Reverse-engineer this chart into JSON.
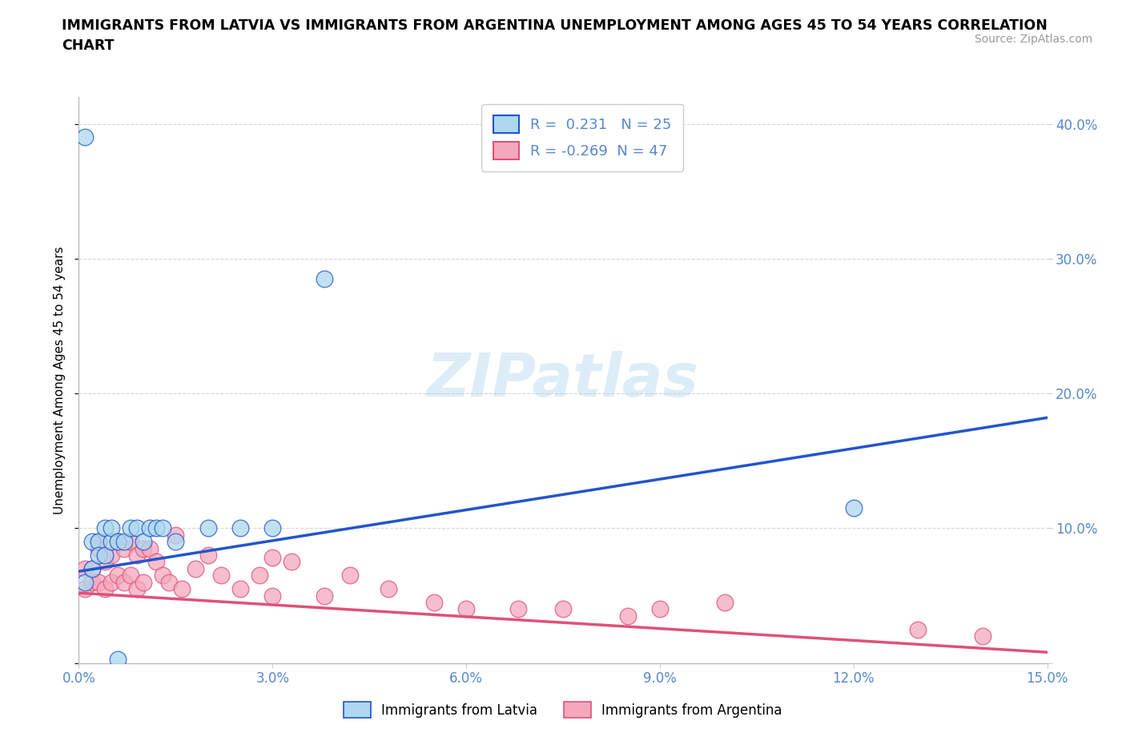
{
  "title_line1": "IMMIGRANTS FROM LATVIA VS IMMIGRANTS FROM ARGENTINA UNEMPLOYMENT AMONG AGES 45 TO 54 YEARS CORRELATION",
  "title_line2": "CHART",
  "source": "Source: ZipAtlas.com",
  "ylabel": "Unemployment Among Ages 45 to 54 years",
  "xlim": [
    0.0,
    0.15
  ],
  "ylim": [
    0.0,
    0.42
  ],
  "xticks": [
    0.0,
    0.03,
    0.06,
    0.09,
    0.12,
    0.15
  ],
  "xticklabels": [
    "0.0%",
    "3.0%",
    "6.0%",
    "9.0%",
    "12.0%",
    "15.0%"
  ],
  "yticks": [
    0.0,
    0.1,
    0.2,
    0.3,
    0.4
  ],
  "yticklabels": [
    "",
    "10.0%",
    "20.0%",
    "30.0%",
    "40.0%"
  ],
  "latvia_R": 0.231,
  "latvia_N": 25,
  "argentina_R": -0.269,
  "argentina_N": 47,
  "latvia_color": "#add8f0",
  "argentina_color": "#f4a8bc",
  "latvia_line_color": "#2255cc",
  "argentina_line_color": "#e0507a",
  "tick_color": "#5588cc",
  "watermark": "ZIPatlas",
  "latvia_line_x0": 0.0,
  "latvia_line_y0": 0.068,
  "latvia_line_x1": 0.15,
  "latvia_line_y1": 0.182,
  "argentina_line_x0": 0.0,
  "argentina_line_y0": 0.052,
  "argentina_line_x1": 0.15,
  "argentina_line_y1": 0.008,
  "latvia_x": [
    0.001,
    0.001,
    0.002,
    0.002,
    0.003,
    0.003,
    0.004,
    0.004,
    0.005,
    0.005,
    0.006,
    0.007,
    0.008,
    0.009,
    0.01,
    0.011,
    0.012,
    0.013,
    0.015,
    0.02,
    0.025,
    0.03,
    0.038,
    0.12,
    0.006
  ],
  "latvia_y": [
    0.39,
    0.06,
    0.07,
    0.09,
    0.09,
    0.08,
    0.1,
    0.08,
    0.09,
    0.1,
    0.09,
    0.09,
    0.1,
    0.1,
    0.09,
    0.1,
    0.1,
    0.1,
    0.09,
    0.1,
    0.1,
    0.1,
    0.285,
    0.115,
    0.003
  ],
  "argentina_x": [
    0.001,
    0.001,
    0.002,
    0.002,
    0.003,
    0.003,
    0.003,
    0.004,
    0.004,
    0.005,
    0.005,
    0.006,
    0.006,
    0.007,
    0.007,
    0.008,
    0.008,
    0.009,
    0.009,
    0.01,
    0.01,
    0.011,
    0.012,
    0.013,
    0.014,
    0.015,
    0.016,
    0.018,
    0.02,
    0.022,
    0.025,
    0.028,
    0.03,
    0.033,
    0.038,
    0.042,
    0.048,
    0.055,
    0.06,
    0.068,
    0.075,
    0.085,
    0.09,
    0.1,
    0.13,
    0.14,
    0.03
  ],
  "argentina_y": [
    0.055,
    0.07,
    0.07,
    0.06,
    0.085,
    0.06,
    0.09,
    0.075,
    0.055,
    0.08,
    0.06,
    0.09,
    0.065,
    0.085,
    0.06,
    0.09,
    0.065,
    0.08,
    0.055,
    0.085,
    0.06,
    0.085,
    0.075,
    0.065,
    0.06,
    0.095,
    0.055,
    0.07,
    0.08,
    0.065,
    0.055,
    0.065,
    0.05,
    0.075,
    0.05,
    0.065,
    0.055,
    0.045,
    0.04,
    0.04,
    0.04,
    0.035,
    0.04,
    0.045,
    0.025,
    0.02,
    0.078
  ]
}
